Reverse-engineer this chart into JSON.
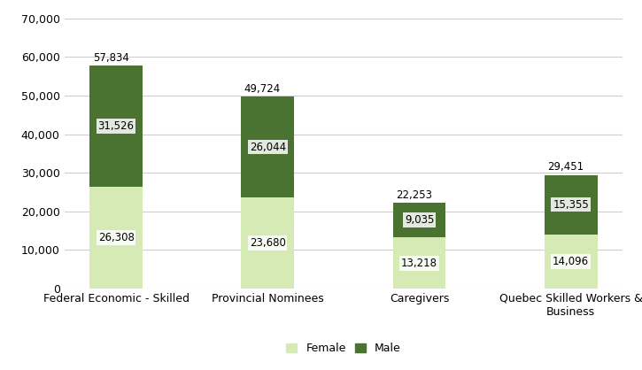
{
  "categories": [
    "Federal Economic - Skilled",
    "Provincial Nominees",
    "Caregivers",
    "Quebec Skilled Workers &\nBusiness"
  ],
  "female_values": [
    26308,
    23680,
    13218,
    14096
  ],
  "male_values": [
    31526,
    26044,
    9035,
    15355
  ],
  "totals": [
    57834,
    49724,
    22253,
    29451
  ],
  "female_color": "#d5eab5",
  "male_color": "#4a7230",
  "female_label": "Female",
  "male_label": "Male",
  "ylim": [
    0,
    70000
  ],
  "yticks": [
    0,
    10000,
    20000,
    30000,
    40000,
    50000,
    60000,
    70000
  ],
  "background_color": "#ffffff",
  "grid_color": "#cccccc",
  "bar_width": 0.35,
  "annotation_fontsize": 8.5,
  "tick_fontsize": 9,
  "legend_fontsize": 9
}
